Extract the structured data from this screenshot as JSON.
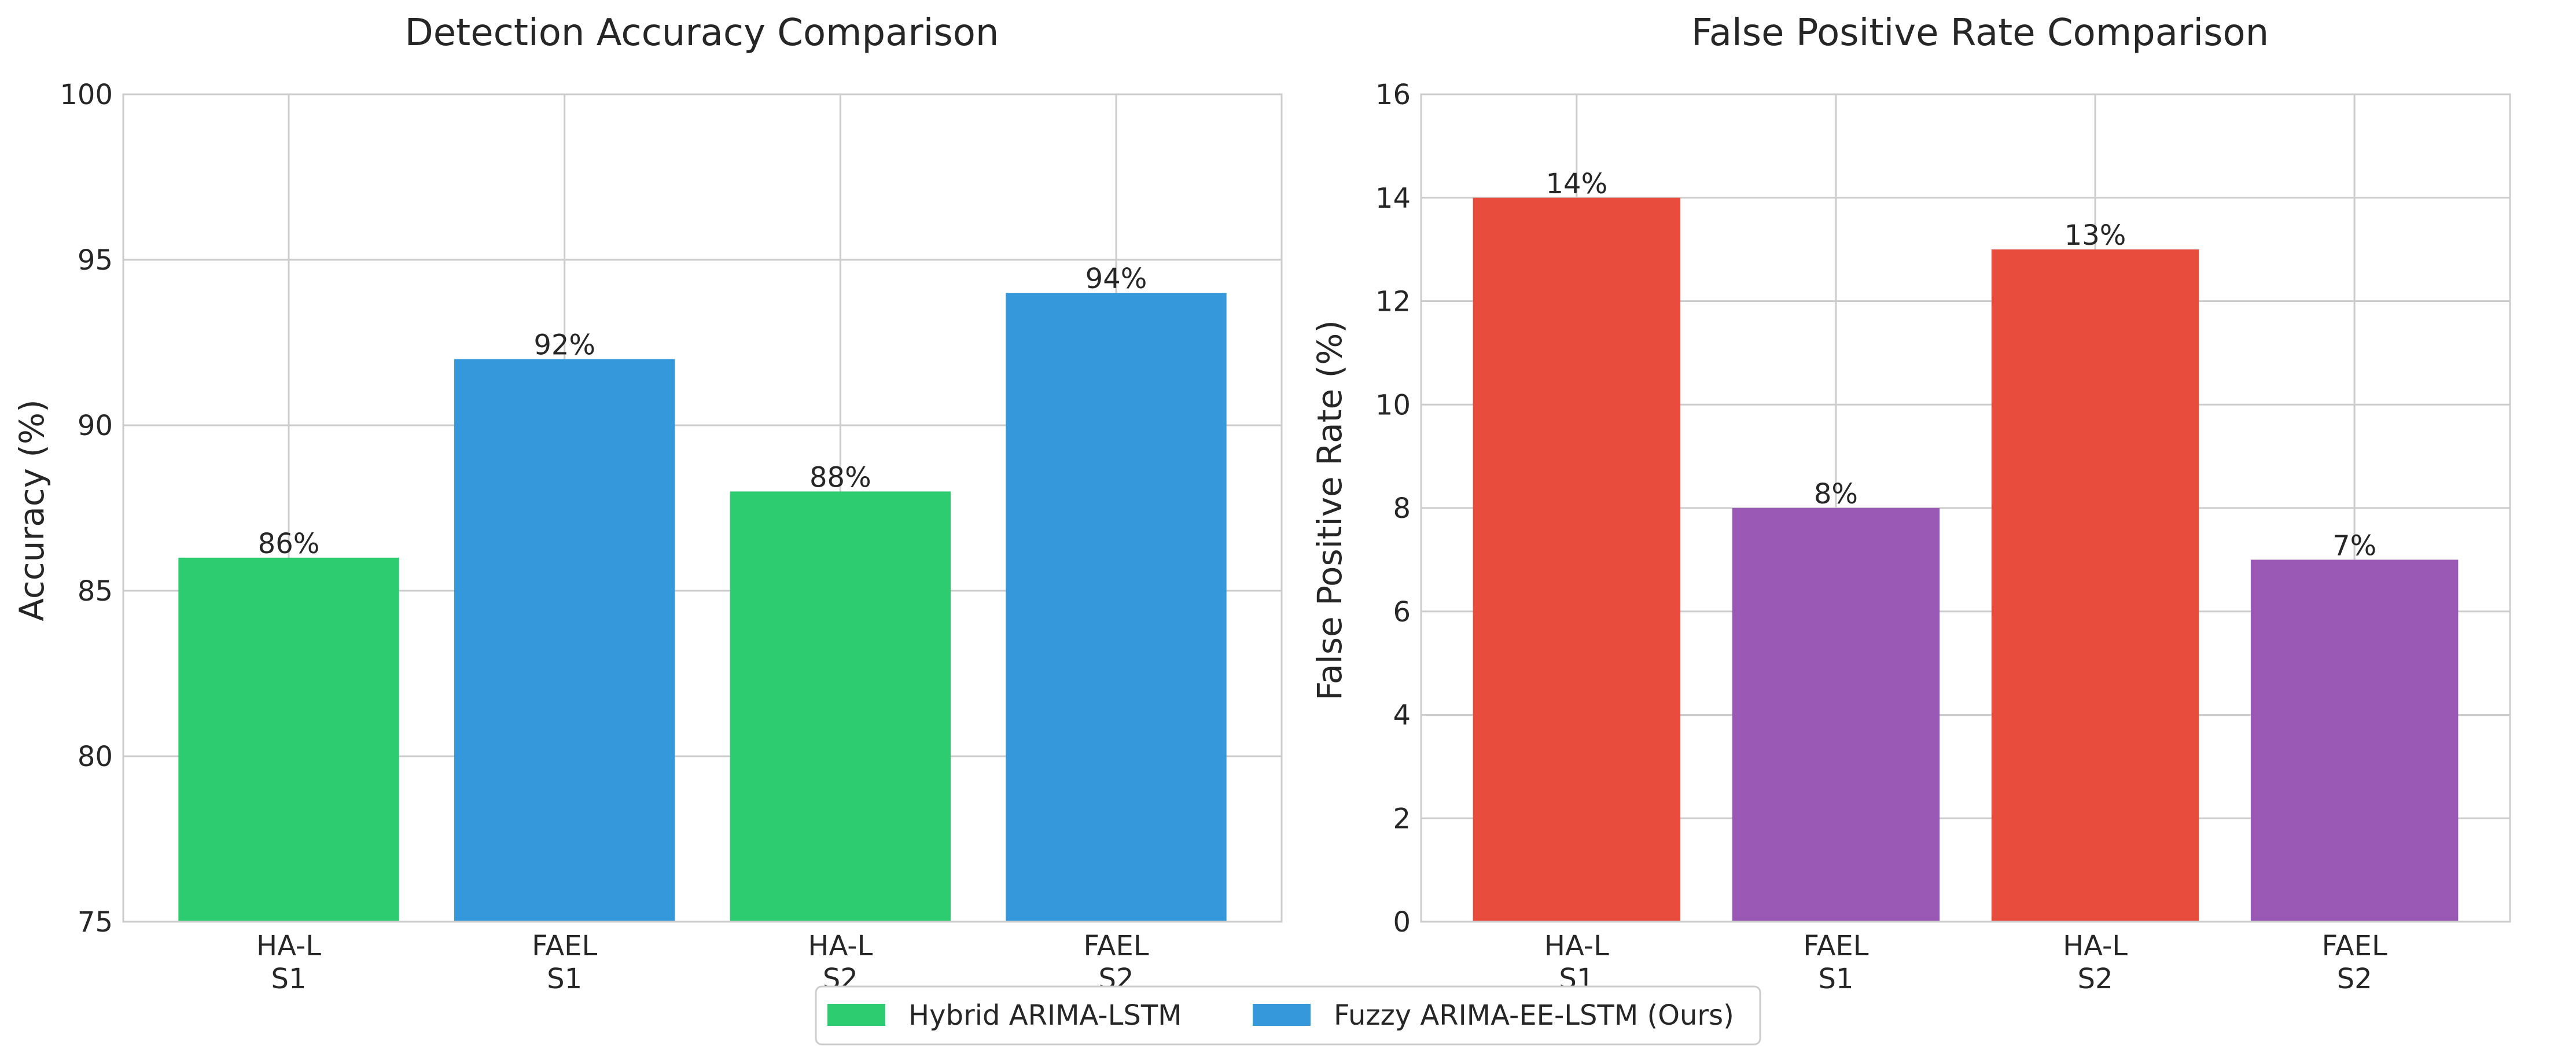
{
  "chart_data": [
    {
      "type": "bar",
      "title": "Detection Accuracy Comparison",
      "xlabel": "",
      "ylabel": "Accuracy (%)",
      "categories": [
        "HA-L\nS1",
        "FAEL\nS1",
        "HA-L\nS2",
        "FAEL\nS2"
      ],
      "values": [
        86,
        92,
        88,
        94
      ],
      "data_labels": [
        "86%",
        "92%",
        "88%",
        "94%"
      ],
      "bar_colors": [
        "#2ecc71",
        "#3498db",
        "#2ecc71",
        "#3498db"
      ],
      "ylim": [
        75,
        100
      ],
      "yticks": [
        75,
        80,
        85,
        90,
        95,
        100
      ],
      "grid": true
    },
    {
      "type": "bar",
      "title": "False Positive Rate Comparison",
      "xlabel": "",
      "ylabel": "False Positive Rate (%)",
      "categories": [
        "HA-L\nS1",
        "FAEL\nS1",
        "HA-L\nS2",
        "FAEL\nS2"
      ],
      "values": [
        14,
        8,
        13,
        7
      ],
      "data_labels": [
        "14%",
        "8%",
        "13%",
        "7%"
      ],
      "bar_colors": [
        "#e74c3c",
        "#9b59b6",
        "#e74c3c",
        "#9b59b6"
      ],
      "ylim": [
        0,
        16
      ],
      "yticks": [
        0,
        2,
        4,
        6,
        8,
        10,
        12,
        14,
        16
      ],
      "grid": true
    }
  ],
  "legend": {
    "placement": "bottom-center",
    "items": [
      {
        "label": "Hybrid ARIMA-LSTM",
        "color": "#2ecc71"
      },
      {
        "label": "Fuzzy ARIMA-EE-LSTM (Ours)",
        "color": "#3498db"
      }
    ]
  }
}
